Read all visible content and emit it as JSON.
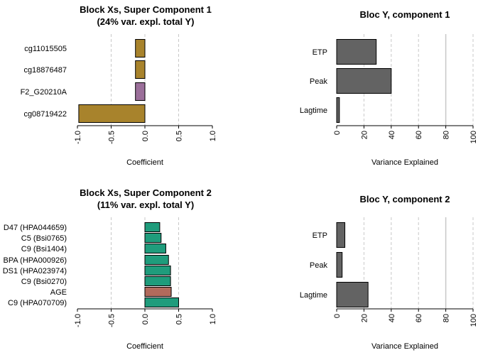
{
  "chart_data": [
    {
      "type": "bar",
      "orientation": "horizontal",
      "title": "Block Xs, Super Component 1",
      "subtitle": "(24% var. expl. total Y)",
      "xlabel": "Coefficient",
      "xlim": [
        -1.0,
        1.0
      ],
      "xticks": [
        "-1.0",
        "-0.5",
        "0.0",
        "0.5",
        "1.0"
      ],
      "categories": [
        "cg11015505",
        "cg18876487",
        "F2_G20210A",
        "cg08719422"
      ],
      "values": [
        -0.14,
        -0.14,
        -0.14,
        -0.98
      ],
      "colors": [
        "#a8832c",
        "#a8832c",
        "#9b6f9a",
        "#a8832c"
      ],
      "grid": "dashed vertical"
    },
    {
      "type": "bar",
      "orientation": "horizontal",
      "title": "Bloc Y, component 1",
      "xlabel": "Variance Explained",
      "xlim": [
        0,
        100
      ],
      "xticks": [
        "0",
        "20",
        "40",
        "60",
        "80",
        "100"
      ],
      "categories": [
        "ETP",
        "Peak",
        "Lagtime"
      ],
      "values": [
        29,
        40,
        2
      ],
      "colors": [
        "#636363",
        "#636363",
        "#636363"
      ],
      "grid": "dashed vertical"
    },
    {
      "type": "bar",
      "orientation": "horizontal",
      "title": "Block Xs, Super Component 2",
      "subtitle": "(11% var. expl. total Y)",
      "xlabel": "Coefficient",
      "xlim": [
        -1.0,
        1.0
      ],
      "xticks": [
        "-1.0",
        "-0.5",
        "0.0",
        "0.5",
        "1.0"
      ],
      "categories": [
        "D47 (HPA044659)",
        "C5 (Bsi0765)",
        "C9 (Bsi1404)",
        "BPA (HPA000926)",
        "DS1 (HPA023974)",
        "C9 (Bsi0270)",
        "AGE",
        "C9 (HPA070709)"
      ],
      "values": [
        0.22,
        0.24,
        0.31,
        0.35,
        0.38,
        0.38,
        0.39,
        0.5
      ],
      "colors": [
        "#1f9c7c",
        "#1f9c7c",
        "#1f9c7c",
        "#1f9c7c",
        "#1f9c7c",
        "#1f9c7c",
        "#b26a5c",
        "#1f9c7c"
      ],
      "grid": "dashed vertical"
    },
    {
      "type": "bar",
      "orientation": "horizontal",
      "title": "Bloc Y, component 2",
      "xlabel": "Variance Explained",
      "xlim": [
        0,
        100
      ],
      "xticks": [
        "0",
        "20",
        "40",
        "60",
        "80",
        "100"
      ],
      "categories": [
        "ETP",
        "Peak",
        "Lagtime"
      ],
      "values": [
        6,
        4,
        23
      ],
      "colors": [
        "#636363",
        "#636363",
        "#636363"
      ],
      "grid": "dashed vertical"
    }
  ]
}
